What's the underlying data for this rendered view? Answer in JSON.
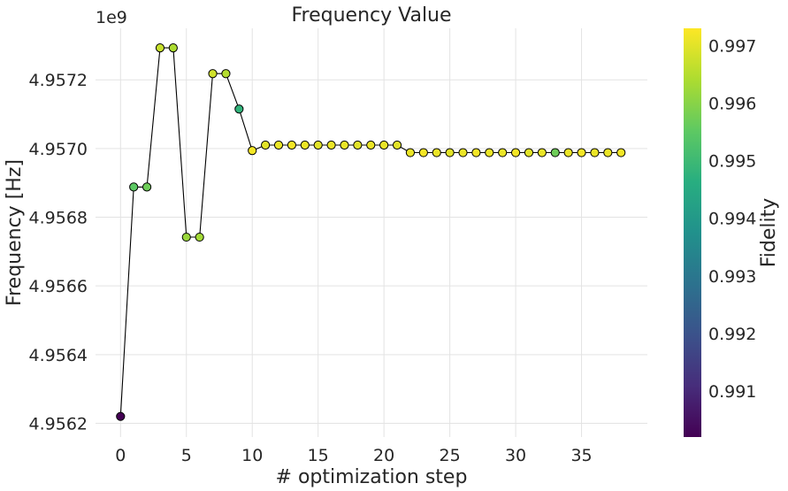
{
  "chart_data": {
    "type": "scatter",
    "title": "Frequency Value",
    "xlabel": "# optimization step",
    "ylabel": "Frequency [Hz]",
    "y_offset_label": "1e9",
    "colorbar_label": "Fidelity",
    "xlim": [
      -1.9,
      40
    ],
    "ylim": [
      4.95616,
      4.95735
    ],
    "xticks": [
      0,
      5,
      10,
      15,
      20,
      25,
      30,
      35
    ],
    "xtick_labels": [
      "0",
      "5",
      "10",
      "15",
      "20",
      "25",
      "30",
      "35"
    ],
    "yticks": [
      4.9562,
      4.9564,
      4.9566,
      4.9568,
      4.957,
      4.9572
    ],
    "ytick_labels": [
      "4.9562",
      "4.9564",
      "4.9566",
      "4.9568",
      "4.9570",
      "4.9572"
    ],
    "colorbar_range": [
      0.9902,
      0.9973
    ],
    "colorbar_ticks": [
      0.991,
      0.992,
      0.993,
      0.994,
      0.995,
      0.996,
      0.997
    ],
    "colorbar_tick_labels": [
      "0.991",
      "0.992",
      "0.993",
      "0.994",
      "0.995",
      "0.996",
      "0.997"
    ],
    "colormap": [
      "#440154",
      "#472d7b",
      "#3b528b",
      "#2c728e",
      "#21918c",
      "#28ae80",
      "#5ec962",
      "#addc30",
      "#fde725"
    ],
    "grid": true,
    "line_color": "#000000",
    "marker_edge_color": "#000000",
    "series": [
      {
        "x": [
          0,
          1,
          2,
          3,
          4,
          5,
          6,
          7,
          8,
          9,
          10,
          11,
          12,
          13,
          14,
          15,
          16,
          17,
          18,
          19,
          20,
          21,
          22,
          23,
          24,
          25,
          26,
          27,
          28,
          29,
          30,
          31,
          32,
          33,
          34,
          35,
          36,
          37,
          38
        ],
        "y": [
          4.95622,
          4.956888,
          4.956888,
          4.957293,
          4.957293,
          4.956742,
          4.956742,
          4.957218,
          4.957218,
          4.957115,
          4.956994,
          4.95701,
          4.95701,
          4.95701,
          4.95701,
          4.95701,
          4.95701,
          4.95701,
          4.95701,
          4.95701,
          4.95701,
          4.95701,
          4.956988,
          4.956988,
          4.956988,
          4.956988,
          4.956988,
          4.956988,
          4.956988,
          4.956988,
          4.956988,
          4.956988,
          4.956988,
          4.956988,
          4.956988,
          4.956988,
          4.956988,
          4.956988,
          4.956988
        ],
        "fidelity": [
          0.9902,
          0.9955,
          0.9957,
          0.9967,
          0.9964,
          0.9962,
          0.9963,
          0.9968,
          0.9965,
          0.9948,
          0.9972,
          0.997,
          0.9971,
          0.9972,
          0.9971,
          0.997,
          0.9971,
          0.9971,
          0.997,
          0.9971,
          0.9971,
          0.997,
          0.9971,
          0.9972,
          0.9971,
          0.997,
          0.9971,
          0.9972,
          0.9971,
          0.9971,
          0.9972,
          0.997,
          0.9971,
          0.9957,
          0.9971,
          0.9972,
          0.9971,
          0.9971,
          0.9972
        ]
      }
    ]
  }
}
